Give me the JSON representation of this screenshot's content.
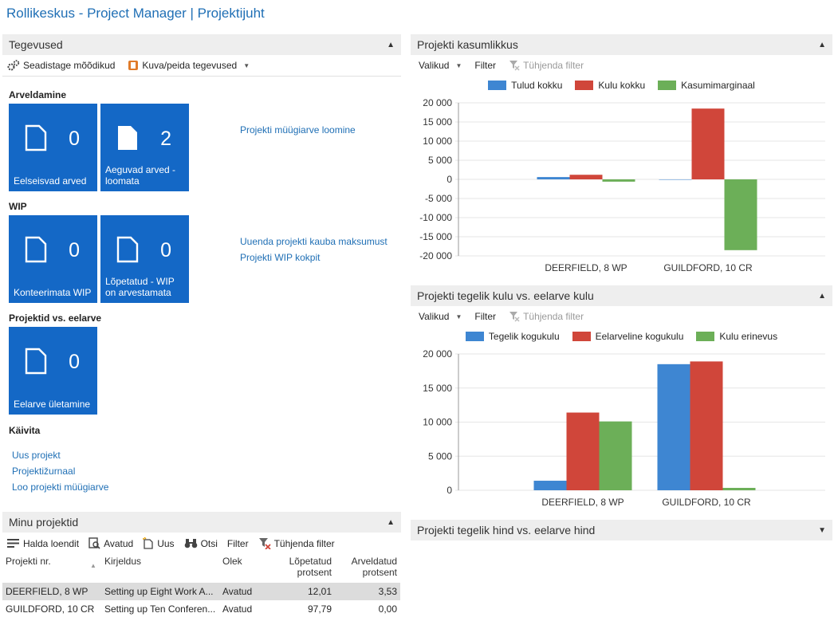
{
  "app": {
    "title": "Rollikeskus - Project Manager | Projektijuht"
  },
  "activities": {
    "header": "Tegevused",
    "toolbar": {
      "setup": "Seadistage mõõdikud",
      "showhide": "Kuva/peida tegevused"
    },
    "sections": {
      "invoicing": "Arveldamine",
      "wip": "WIP",
      "budget": "Projektid vs. eelarve",
      "start": "Käivita"
    },
    "tiles": [
      {
        "count": "0",
        "label": "Eelseisvad arved"
      },
      {
        "count": "2",
        "label": "Aeguvad arved - loomata"
      },
      {
        "count": "0",
        "label": "Konteerimata WIP"
      },
      {
        "count": "0",
        "label": "Lõpetatud - WIP on arvestamata"
      },
      {
        "count": "0",
        "label": "Eelarve ületamine"
      }
    ],
    "links": {
      "invoice_create": "Projekti müügiarve loomine",
      "update_cost": "Uuenda projekti kauba maksumust",
      "wip_cockpit": "Projekti WIP kokpit",
      "new_project": "Uus projekt",
      "journal": "Projektižurnaal",
      "create_invoice": "Loo projekti müügiarve"
    }
  },
  "my_projects": {
    "header": "Minu projektid",
    "toolbar": {
      "manage": "Halda loendit",
      "open": "Avatud",
      "new": "Uus",
      "find": "Otsi",
      "filter": "Filter",
      "clear": "Tühjenda filter"
    },
    "columns": [
      "Projekti nr.",
      "Kirjeldus",
      "Olek",
      "Lõpetatud protsent",
      "Arveldatud protsent"
    ],
    "rows": [
      [
        "DEERFIELD, 8 WP",
        "Setting up Eight Work A...",
        "Avatud",
        "12,01",
        "3,53"
      ],
      [
        "GUILDFORD, 10 CR",
        "Setting up Ten Conferen...",
        "Avatud",
        "97,79",
        "0,00"
      ]
    ]
  },
  "chart_toolbar": {
    "options": "Valikud",
    "filter": "Filter",
    "clear": "Tühjenda filter"
  },
  "profit_panel": {
    "header": "Projekti kasumlikkus"
  },
  "cost_panel": {
    "header": "Projekti tegelik kulu vs. eelarve kulu"
  },
  "price_panel": {
    "header": "Projekti tegelik hind vs. eelarve hind"
  },
  "colors": {
    "blue": "#3e86d2",
    "red": "#d0463a",
    "green": "#6caf58",
    "tile": "#1468c6",
    "link": "#1f6fb5"
  },
  "chart_data": [
    {
      "type": "bar",
      "categories": [
        "DEERFIELD, 8 WP",
        "GUILDFORD, 10 CR"
      ],
      "series": [
        {
          "name": "Tulud kokku",
          "values": [
            600,
            0
          ]
        },
        {
          "name": "Kulu kokku",
          "values": [
            1200,
            18500
          ]
        },
        {
          "name": "Kasumimarginaal",
          "values": [
            -600,
            -18500
          ]
        }
      ],
      "ylim": [
        -20000,
        20000
      ],
      "yticks": [
        "20 000",
        "15 000",
        "10 000",
        "5 000",
        "0",
        "-5 000",
        "-10 000",
        "-15 000",
        "-20 000"
      ],
      "ytick_values": [
        20000,
        15000,
        10000,
        5000,
        0,
        -5000,
        -10000,
        -15000,
        -20000
      ],
      "legend": "top"
    },
    {
      "type": "bar",
      "categories": [
        "DEERFIELD, 8 WP",
        "GUILDFORD, 10 CR"
      ],
      "series": [
        {
          "name": "Tegelik kogukulu",
          "values": [
            1400,
            18500
          ]
        },
        {
          "name": "Eelarveline kogukulu",
          "values": [
            11400,
            18900
          ]
        },
        {
          "name": "Kulu erinevus",
          "values": [
            10100,
            350
          ]
        }
      ],
      "ylim": [
        0,
        20000
      ],
      "yticks": [
        "20 000",
        "15 000",
        "10 000",
        "5 000",
        "0"
      ],
      "ytick_values": [
        20000,
        15000,
        10000,
        5000,
        0
      ],
      "legend": "top"
    }
  ]
}
